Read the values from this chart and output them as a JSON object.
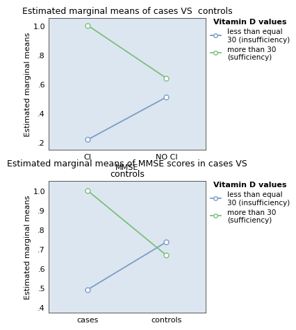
{
  "plot1": {
    "title": "Estimated marginal means of cases VS  controls",
    "xlabel": "MMSE",
    "ylabel": "Estimated marginal means",
    "xtick_labels": [
      "CI",
      "NO CI"
    ],
    "ylim": [
      0.15,
      1.05
    ],
    "yticks": [
      0.2,
      0.4,
      0.6,
      0.8,
      1.0
    ],
    "ytick_labels": [
      ".2",
      ".4",
      ".6",
      ".8",
      "1.0"
    ],
    "blue_line": [
      0.22,
      0.51
    ],
    "green_line": [
      1.0,
      0.64
    ],
    "legend_title": "Vitamin D values",
    "legend_label1": "less than equal\n30 (insufficiency)",
    "legend_label2": "more than 30\n(sufficiency)"
  },
  "plot2": {
    "title": "Estimated marginal means of MMSE scores in cases VS\ncontrols",
    "xlabel": "",
    "ylabel": "Estimated marginal means",
    "xtick_labels": [
      "cases",
      "controls"
    ],
    "ylim": [
      0.37,
      1.05
    ],
    "yticks": [
      0.4,
      0.5,
      0.6,
      0.7,
      0.8,
      0.9,
      1.0
    ],
    "ytick_labels": [
      ".4",
      ".5",
      ".6",
      ".7",
      ".8",
      ".9",
      "1.0"
    ],
    "blue_line": [
      0.49,
      0.735
    ],
    "green_line": [
      1.0,
      0.667
    ],
    "legend_title": "Vitamin D values",
    "legend_label1": "less than equal\n30 (insufficiency)",
    "legend_label2": "more than 30\n(sufficiency)"
  },
  "blue_color": "#7b9cc7",
  "green_color": "#7bbf7b",
  "bg_color": "#dce6f0",
  "fig_bg_color": "#ffffff",
  "marker_size": 5,
  "line_width": 1.3,
  "title_fontsize": 9,
  "label_fontsize": 8,
  "tick_fontsize": 8,
  "legend_fontsize": 7.5,
  "legend_title_fontsize": 8
}
